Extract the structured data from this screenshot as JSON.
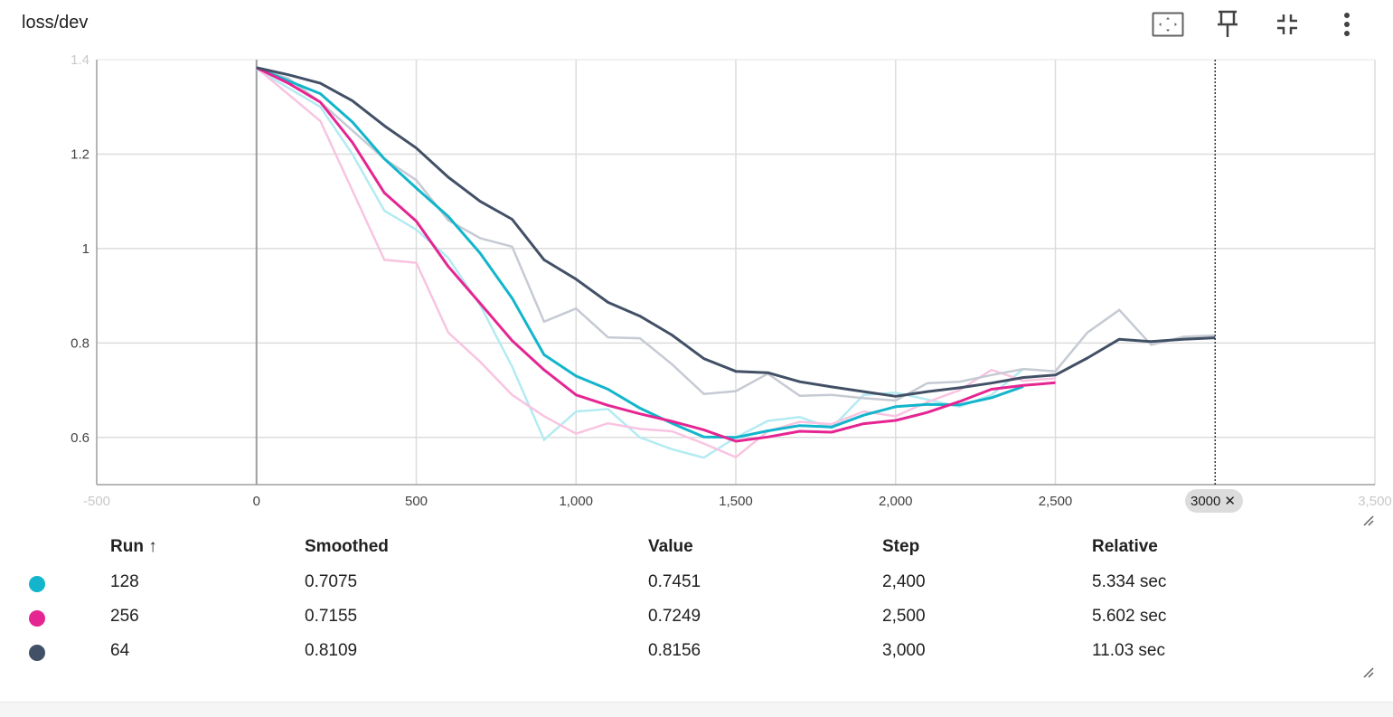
{
  "card": {
    "title": "loss/dev"
  },
  "toolbar": {
    "icons": [
      "fit-domain-icon",
      "pin-icon",
      "collapse-icon",
      "more-vert-icon"
    ]
  },
  "chart_data": {
    "type": "line",
    "title": "loss/dev",
    "xlim": [
      -500,
      3500
    ],
    "ylim": [
      0.5,
      1.4
    ],
    "x_ticks": [
      {
        "v": -500,
        "label": "-500",
        "faded": true
      },
      {
        "v": 0,
        "label": "0"
      },
      {
        "v": 500,
        "label": "500"
      },
      {
        "v": 1000,
        "label": "1,000"
      },
      {
        "v": 1500,
        "label": "1,500"
      },
      {
        "v": 2000,
        "label": "2,000"
      },
      {
        "v": 2500,
        "label": "2,500"
      },
      {
        "v": 3500,
        "label": "3,500",
        "faded": true
      }
    ],
    "y_ticks": [
      {
        "v": 0.6,
        "label": "0.6"
      },
      {
        "v": 0.8,
        "label": "0.8"
      },
      {
        "v": 1.0,
        "label": "1"
      },
      {
        "v": 1.2,
        "label": "1.2"
      },
      {
        "v": 1.4,
        "label": "1.4",
        "faded": true
      }
    ],
    "grid": true,
    "cursor_step": 3000,
    "series": [
      {
        "name": "128",
        "color": "#12b5cb",
        "raw_color": "#b3ebf2",
        "raw": [
          [
            0,
            1.38
          ],
          [
            100,
            1.34
          ],
          [
            200,
            1.3
          ],
          [
            300,
            1.2
          ],
          [
            400,
            1.08
          ],
          [
            500,
            1.04
          ],
          [
            600,
            0.98
          ],
          [
            700,
            0.88
          ],
          [
            800,
            0.75
          ],
          [
            900,
            0.595
          ],
          [
            1000,
            0.655
          ],
          [
            1100,
            0.66
          ],
          [
            1200,
            0.6
          ],
          [
            1300,
            0.575
          ],
          [
            1400,
            0.557
          ],
          [
            1500,
            0.6
          ],
          [
            1600,
            0.635
          ],
          [
            1700,
            0.643
          ],
          [
            1800,
            0.62
          ],
          [
            1900,
            0.69
          ],
          [
            2000,
            0.695
          ],
          [
            2100,
            0.68
          ],
          [
            2200,
            0.665
          ],
          [
            2300,
            0.69
          ],
          [
            2400,
            0.745
          ]
        ],
        "smoothed": [
          [
            0,
            1.383
          ],
          [
            100,
            1.355
          ],
          [
            200,
            1.328
          ],
          [
            300,
            1.268
          ],
          [
            400,
            1.19
          ],
          [
            500,
            1.128
          ],
          [
            600,
            1.068
          ],
          [
            700,
            0.99
          ],
          [
            800,
            0.895
          ],
          [
            900,
            0.775
          ],
          [
            1000,
            0.73
          ],
          [
            1100,
            0.702
          ],
          [
            1200,
            0.662
          ],
          [
            1300,
            0.63
          ],
          [
            1400,
            0.601
          ],
          [
            1500,
            0.6
          ],
          [
            1600,
            0.614
          ],
          [
            1700,
            0.625
          ],
          [
            1800,
            0.622
          ],
          [
            1900,
            0.647
          ],
          [
            2000,
            0.665
          ],
          [
            2100,
            0.67
          ],
          [
            2200,
            0.669
          ],
          [
            2300,
            0.684
          ],
          [
            2400,
            0.708
          ]
        ]
      },
      {
        "name": "256",
        "color": "#e52592",
        "raw_color": "#f8c4e1",
        "raw": [
          [
            0,
            1.383
          ],
          [
            200,
            1.27
          ],
          [
            400,
            0.976
          ],
          [
            500,
            0.97
          ],
          [
            600,
            0.822
          ],
          [
            700,
            0.76
          ],
          [
            800,
            0.69
          ],
          [
            900,
            0.645
          ],
          [
            1000,
            0.608
          ],
          [
            1100,
            0.63
          ],
          [
            1200,
            0.618
          ],
          [
            1300,
            0.613
          ],
          [
            1400,
            0.587
          ],
          [
            1500,
            0.558
          ],
          [
            1600,
            0.613
          ],
          [
            1700,
            0.633
          ],
          [
            1800,
            0.628
          ],
          [
            1900,
            0.655
          ],
          [
            2000,
            0.645
          ],
          [
            2100,
            0.675
          ],
          [
            2200,
            0.7
          ],
          [
            2300,
            0.743
          ],
          [
            2400,
            0.72
          ],
          [
            2500,
            0.725
          ]
        ],
        "smoothed": [
          [
            0,
            1.383
          ],
          [
            100,
            1.35
          ],
          [
            200,
            1.31
          ],
          [
            300,
            1.225
          ],
          [
            400,
            1.118
          ],
          [
            500,
            1.058
          ],
          [
            600,
            0.962
          ],
          [
            700,
            0.884
          ],
          [
            800,
            0.805
          ],
          [
            900,
            0.743
          ],
          [
            1000,
            0.69
          ],
          [
            1100,
            0.668
          ],
          [
            1200,
            0.65
          ],
          [
            1300,
            0.634
          ],
          [
            1400,
            0.616
          ],
          [
            1500,
            0.592
          ],
          [
            1600,
            0.601
          ],
          [
            1700,
            0.613
          ],
          [
            1800,
            0.611
          ],
          [
            1900,
            0.629
          ],
          [
            2000,
            0.636
          ],
          [
            2100,
            0.653
          ],
          [
            2200,
            0.676
          ],
          [
            2300,
            0.702
          ],
          [
            2400,
            0.71
          ],
          [
            2500,
            0.716
          ]
        ]
      },
      {
        "name": "64",
        "color": "#425066",
        "raw_color": "#c6cad3",
        "raw": [
          [
            0,
            1.383
          ],
          [
            100,
            1.36
          ],
          [
            200,
            1.31
          ],
          [
            300,
            1.25
          ],
          [
            400,
            1.19
          ],
          [
            500,
            1.145
          ],
          [
            600,
            1.06
          ],
          [
            700,
            1.022
          ],
          [
            800,
            1.004
          ],
          [
            900,
            0.845
          ],
          [
            1000,
            0.873
          ],
          [
            1100,
            0.812
          ],
          [
            1200,
            0.81
          ],
          [
            1300,
            0.755
          ],
          [
            1400,
            0.692
          ],
          [
            1500,
            0.698
          ],
          [
            1600,
            0.735
          ],
          [
            1700,
            0.688
          ],
          [
            1800,
            0.69
          ],
          [
            1900,
            0.683
          ],
          [
            2000,
            0.678
          ],
          [
            2100,
            0.715
          ],
          [
            2200,
            0.718
          ],
          [
            2300,
            0.732
          ],
          [
            2400,
            0.745
          ],
          [
            2500,
            0.74
          ],
          [
            2600,
            0.822
          ],
          [
            2700,
            0.87
          ],
          [
            2800,
            0.796
          ],
          [
            2900,
            0.813
          ],
          [
            3000,
            0.816
          ]
        ],
        "smoothed": [
          [
            0,
            1.383
          ],
          [
            100,
            1.368
          ],
          [
            200,
            1.35
          ],
          [
            300,
            1.313
          ],
          [
            400,
            1.26
          ],
          [
            500,
            1.213
          ],
          [
            600,
            1.151
          ],
          [
            700,
            1.1
          ],
          [
            800,
            1.062
          ],
          [
            900,
            0.976
          ],
          [
            1000,
            0.935
          ],
          [
            1100,
            0.886
          ],
          [
            1200,
            0.857
          ],
          [
            1300,
            0.817
          ],
          [
            1400,
            0.767
          ],
          [
            1500,
            0.74
          ],
          [
            1600,
            0.737
          ],
          [
            1700,
            0.718
          ],
          [
            1800,
            0.707
          ],
          [
            1900,
            0.697
          ],
          [
            2000,
            0.687
          ],
          [
            2100,
            0.697
          ],
          [
            2200,
            0.705
          ],
          [
            2300,
            0.715
          ],
          [
            2400,
            0.727
          ],
          [
            2500,
            0.732
          ],
          [
            2600,
            0.768
          ],
          [
            2700,
            0.808
          ],
          [
            2800,
            0.803
          ],
          [
            2900,
            0.808
          ],
          [
            3000,
            0.811
          ]
        ]
      }
    ]
  },
  "step_chip": {
    "label": "3000",
    "close": "✕"
  },
  "table": {
    "headers": {
      "run": "Run ↑",
      "smoothed": "Smoothed",
      "value": "Value",
      "step": "Step",
      "relative": "Relative"
    },
    "rows": [
      {
        "color": "#12b5cb",
        "run": "128",
        "smoothed": "0.7075",
        "value": "0.7451",
        "step": "2,400",
        "relative": "5.334 sec"
      },
      {
        "color": "#e52592",
        "run": "256",
        "smoothed": "0.7155",
        "value": "0.7249",
        "step": "2,500",
        "relative": "5.602 sec"
      },
      {
        "color": "#425066",
        "run": "64",
        "smoothed": "0.8109",
        "value": "0.8156",
        "step": "3,000",
        "relative": "11.03 sec"
      }
    ]
  }
}
